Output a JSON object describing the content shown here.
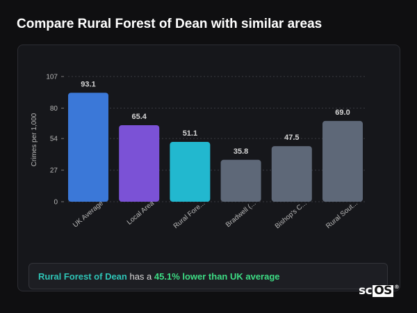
{
  "page": {
    "title": "Compare Rural Forest of Dean with similar areas"
  },
  "chart_data": {
    "type": "bar",
    "categories": [
      "UK Average",
      "Local Area",
      "Rural Fore...",
      "Bradwell (...",
      "Bishop's C...",
      "Rural Sout..."
    ],
    "values": [
      93.1,
      65.4,
      51.1,
      35.8,
      47.5,
      69.0
    ],
    "value_labels": [
      "93.1",
      "65.4",
      "51.1",
      "35.8",
      "47.5",
      "69.0"
    ],
    "colors": [
      "#3b78d8",
      "#7b52d6",
      "#22b8cf",
      "#5e6878",
      "#5e6878",
      "#5e6878"
    ],
    "ylabel": "Crimes per 1,000",
    "yticks": [
      0,
      27,
      54,
      80,
      107
    ],
    "ylim": [
      0,
      107
    ],
    "grid": true
  },
  "callout": {
    "area": "Rural Forest of Dean",
    "mid": " has a ",
    "stat": "45.1% lower than UK average",
    "area_color": "#2ec4b6",
    "stat_color": "#3ddc84"
  },
  "logo": {
    "prefix": "sc",
    "boxed": "OS",
    "mark": "®"
  }
}
